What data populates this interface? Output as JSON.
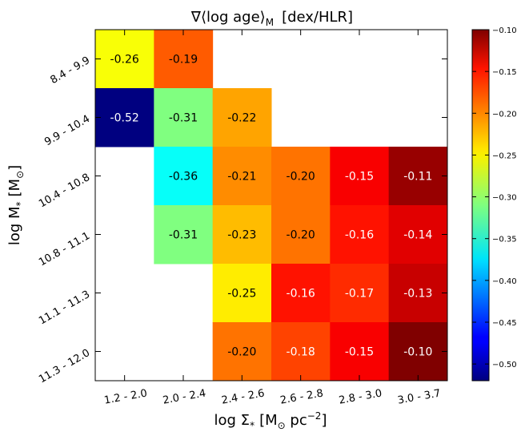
{
  "chart_data": {
    "type": "heatmap",
    "title": "∇⟨log age⟩",
    "title_subscript": "M",
    "title_unit": "[dex/HLR]",
    "xlabel": "log Σ",
    "xlabel_subscript": "*",
    "xlabel_unit_prefix": "[M",
    "xlabel_unit_sun": "⊙",
    "xlabel_unit_mid": " pc",
    "xlabel_unit_exp": "−2",
    "xlabel_unit_suffix": "]",
    "ylabel": "log M",
    "ylabel_subscript": "*",
    "ylabel_unit_prefix": "[M",
    "ylabel_unit_sun": "⊙",
    "ylabel_unit_suffix": "]",
    "x_categories": [
      "1.2 - 2.0",
      "2.0 - 2.4",
      "2.4 - 2.6",
      "2.6 - 2.8",
      "2.8 - 3.0",
      "3.0 - 3.7"
    ],
    "y_categories": [
      "8.4 - 9.9",
      "9.9 - 10.4",
      "10.4 - 10.8",
      "10.8 - 11.1",
      "11.1 - 11.3",
      "11.3 - 12.0"
    ],
    "values": [
      [
        -0.26,
        -0.19,
        null,
        null,
        null,
        null
      ],
      [
        -0.52,
        -0.31,
        -0.22,
        null,
        null,
        null
      ],
      [
        null,
        -0.36,
        -0.21,
        -0.2,
        -0.15,
        -0.11
      ],
      [
        null,
        -0.31,
        -0.23,
        -0.2,
        -0.16,
        -0.14
      ],
      [
        null,
        null,
        -0.25,
        -0.16,
        -0.17,
        -0.13
      ],
      [
        null,
        null,
        -0.2,
        -0.18,
        -0.15,
        -0.1
      ]
    ],
    "value_labels": [
      [
        "-0.26",
        "-0.19",
        "",
        "",
        "",
        ""
      ],
      [
        "-0.52",
        "-0.31",
        "-0.22",
        "",
        "",
        ""
      ],
      [
        "",
        "-0.36",
        "-0.21",
        "-0.20",
        "-0.15",
        "-0.11"
      ],
      [
        "",
        "-0.31",
        "-0.23",
        "-0.20",
        "-0.16",
        "-0.14"
      ],
      [
        "",
        "",
        "-0.25",
        "-0.16",
        "-0.17",
        "-0.13"
      ],
      [
        "",
        "",
        "-0.20",
        "-0.18",
        "-0.15",
        "-0.10"
      ]
    ],
    "colorscale": "jet",
    "vmin": -0.52,
    "vmax": -0.1,
    "colorbar_ticks": [
      -0.5,
      -0.45,
      -0.4,
      -0.35,
      -0.3,
      -0.25,
      -0.2,
      -0.15,
      -0.1
    ],
    "colorbar_tick_labels": [
      "−0.50",
      "−0.45",
      "−0.40",
      "−0.35",
      "−0.30",
      "−0.25",
      "−0.20",
      "−0.15",
      "−0.10"
    ],
    "grid": false
  }
}
